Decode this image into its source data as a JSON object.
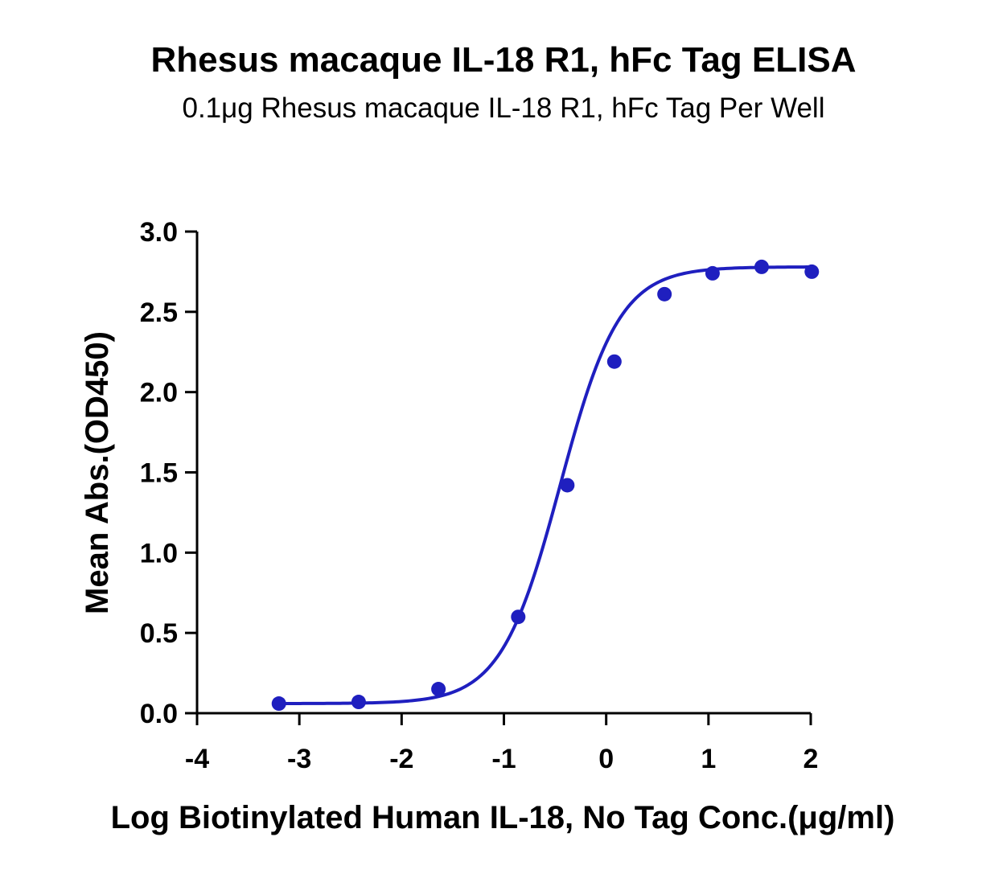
{
  "chart_data": {
    "type": "line",
    "title": "Rhesus macaque IL-18 R1, hFc Tag ELISA",
    "subtitle": "0.1μg Rhesus macaque IL-18 R1, hFc Tag Per Well",
    "xlabel": "Log Biotinylated Human IL-18, No Tag Conc.(μg/ml)",
    "ylabel": "Mean Abs.(OD450)",
    "xlim": [
      -4,
      2
    ],
    "ylim": [
      0,
      3.0
    ],
    "x_ticks": [
      "-4",
      "-3",
      "-2",
      "-1",
      "0",
      "1",
      "2"
    ],
    "y_ticks": [
      "0.0",
      "0.5",
      "1.0",
      "1.5",
      "2.0",
      "2.5",
      "3.0"
    ],
    "grid": false,
    "color": "#1f1fbf",
    "series": [
      {
        "x": [
          -3.2,
          -2.42,
          -1.64,
          -0.86,
          -0.38,
          0.08,
          0.57,
          1.04,
          1.52,
          2.01
        ],
        "y": [
          0.06,
          0.07,
          0.15,
          0.6,
          1.42,
          2.19,
          2.61,
          2.74,
          2.78,
          2.75
        ],
        "fit": "4PL",
        "fit_params": {
          "bottom": 0.06,
          "top": 2.78,
          "logEC50": -0.45,
          "hill": 1.5
        }
      }
    ]
  }
}
